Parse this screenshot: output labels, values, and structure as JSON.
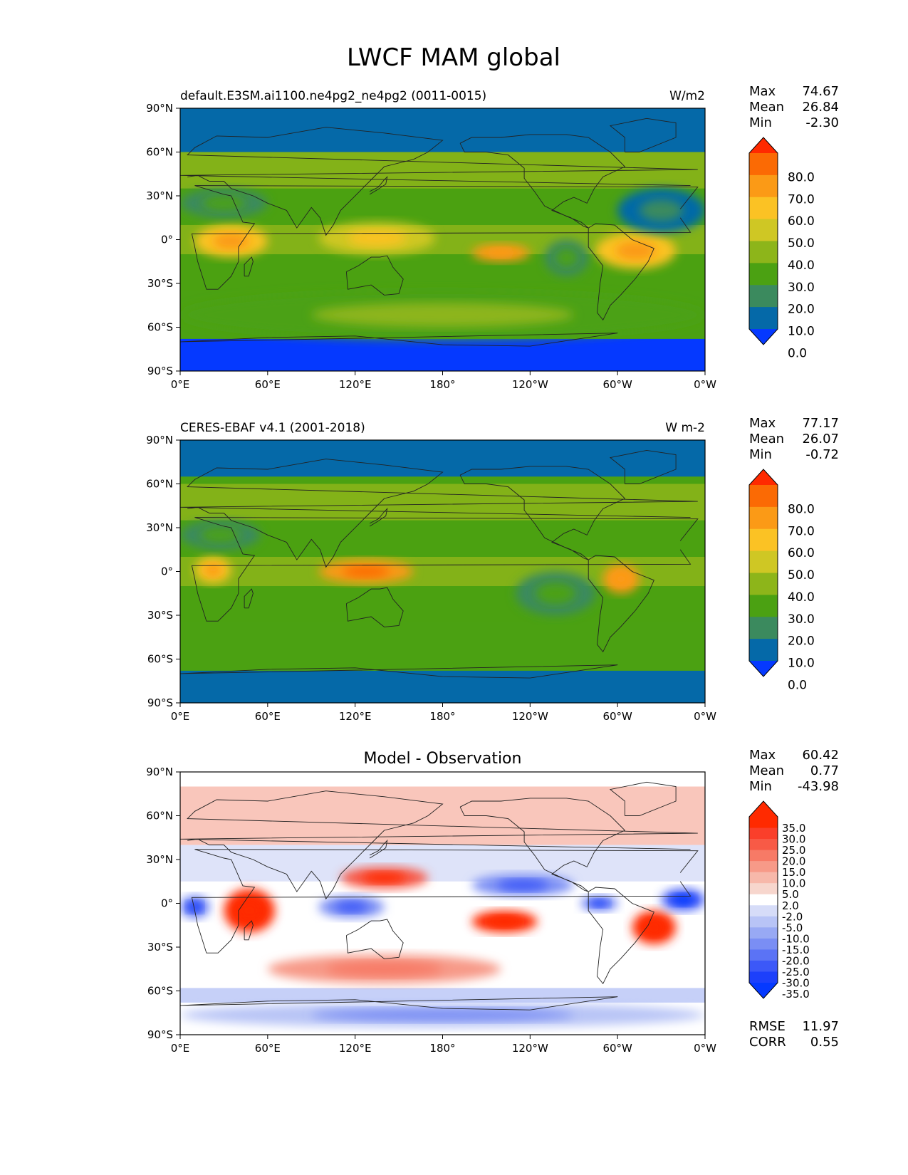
{
  "figure": {
    "title": "LWCF MAM global"
  },
  "chart_data": [
    {
      "type": "heatmap",
      "title_left": "default.E3SM.ai1100.ne4pg2_ne4pg2 (0011-0015)",
      "title_center": "",
      "units": "W/m2",
      "x_ticks": [
        "0°E",
        "60°E",
        "120°E",
        "180°",
        "120°W",
        "60°W",
        "0°W"
      ],
      "y_ticks": [
        "90°N",
        "60°N",
        "30°N",
        "0°",
        "30°S",
        "60°S",
        "90°S"
      ],
      "xlim": [
        0,
        360
      ],
      "ylim": [
        -90,
        90
      ],
      "stats": [
        {
          "label": "Max",
          "value": "74.67"
        },
        {
          "label": "Mean",
          "value": "26.84"
        },
        {
          "label": "Min",
          "value": "-2.30"
        }
      ],
      "colorbar": {
        "labels": [
          "80.0",
          "70.0",
          "60.0",
          "50.0",
          "40.0",
          "30.0",
          "20.0",
          "10.0",
          "0.0"
        ],
        "colors": [
          "#ff2a00",
          "#fb6a04",
          "#fb9a16",
          "#fbc224",
          "#cfc724",
          "#8db51a",
          "#4ba112",
          "#3b8a5e",
          "#0569a8",
          "#0539ff"
        ]
      },
      "regions": [
        {
          "name": "polar-north",
          "lat": [
            60,
            90
          ],
          "lon": [
            0,
            360
          ],
          "value": 5
        },
        {
          "name": "polar-south",
          "lat": [
            -90,
            -68
          ],
          "lon": [
            0,
            360
          ],
          "value": -1
        },
        {
          "name": "subantarctic-band",
          "lat": [
            -68,
            -35
          ],
          "lon": [
            0,
            360
          ],
          "value": 28
        },
        {
          "name": "africa-convection",
          "lat": [
            -12,
            10
          ],
          "lon": [
            10,
            60
          ],
          "value": 58
        },
        {
          "name": "maritime-continent",
          "lat": [
            -10,
            12
          ],
          "lon": [
            95,
            175
          ],
          "value": 48
        },
        {
          "name": "central-pacific-max",
          "lat": [
            -15,
            -3
          ],
          "lon": [
            200,
            240
          ],
          "value": 60
        },
        {
          "name": "amazon-atlantic",
          "lat": [
            -20,
            5
          ],
          "lon": [
            285,
            340
          ],
          "value": 52
        },
        {
          "name": "east-pacific-dry",
          "lat": [
            -25,
            0
          ],
          "lon": [
            250,
            280
          ],
          "value": 12
        },
        {
          "name": "atlantic-subtropics",
          "lat": [
            5,
            35
          ],
          "lon": [
            300,
            360
          ],
          "value": 9
        },
        {
          "name": "sahara-arabia",
          "lat": [
            15,
            35
          ],
          "lon": [
            0,
            60
          ],
          "value": 18
        }
      ]
    },
    {
      "type": "heatmap",
      "title_left": "CERES-EBAF v4.1 (2001-2018)",
      "title_center": "",
      "units": "W m-2",
      "x_ticks": [
        "0°E",
        "60°E",
        "120°E",
        "180°",
        "120°W",
        "60°W",
        "0°W"
      ],
      "y_ticks": [
        "90°N",
        "60°N",
        "30°N",
        "0°",
        "30°S",
        "60°S",
        "90°S"
      ],
      "xlim": [
        0,
        360
      ],
      "ylim": [
        -90,
        90
      ],
      "stats": [
        {
          "label": "Max",
          "value": "77.17"
        },
        {
          "label": "Mean",
          "value": "26.07"
        },
        {
          "label": "Min",
          "value": "-0.72"
        }
      ],
      "colorbar": {
        "labels": [
          "80.0",
          "70.0",
          "60.0",
          "50.0",
          "40.0",
          "30.0",
          "20.0",
          "10.0",
          "0.0"
        ],
        "colors": [
          "#ff2a00",
          "#fb6a04",
          "#fb9a16",
          "#fbc224",
          "#cfc724",
          "#8db51a",
          "#4ba112",
          "#3b8a5e",
          "#0569a8",
          "#0539ff"
        ]
      },
      "regions": [
        {
          "name": "polar-north",
          "lat": [
            65,
            90
          ],
          "lon": [
            0,
            360
          ],
          "value": 8
        },
        {
          "name": "polar-south",
          "lat": [
            -90,
            -68
          ],
          "lon": [
            0,
            360
          ],
          "value": 8
        },
        {
          "name": "central-africa",
          "lat": [
            -8,
            10
          ],
          "lon": [
            10,
            35
          ],
          "value": 58
        },
        {
          "name": "maritime-continent",
          "lat": [
            -8,
            8
          ],
          "lon": [
            95,
            160
          ],
          "value": 62
        },
        {
          "name": "amazon",
          "lat": [
            -15,
            5
          ],
          "lon": [
            290,
            315
          ],
          "value": 60
        },
        {
          "name": "east-pacific-dry",
          "lat": [
            -30,
            0
          ],
          "lon": [
            230,
            285
          ],
          "value": 15
        },
        {
          "name": "sahara",
          "lat": [
            15,
            35
          ],
          "lon": [
            0,
            55
          ],
          "value": 15
        }
      ]
    },
    {
      "type": "heatmap",
      "title_left": "",
      "title_center": "Model - Observation",
      "units": "",
      "x_ticks": [
        "0°E",
        "60°E",
        "120°E",
        "180°",
        "120°W",
        "60°W",
        "0°W"
      ],
      "y_ticks": [
        "90°N",
        "60°N",
        "30°N",
        "0°",
        "30°S",
        "60°S",
        "90°S"
      ],
      "xlim": [
        0,
        360
      ],
      "ylim": [
        -90,
        90
      ],
      "stats": [
        {
          "label": "Max",
          "value": "60.42"
        },
        {
          "label": "Mean",
          "value": "0.77"
        },
        {
          "label": "Min",
          "value": "-43.98"
        }
      ],
      "extra_stats": [
        {
          "label": "RMSE",
          "value": "11.97"
        },
        {
          "label": "CORR",
          "value": "0.55"
        }
      ],
      "colorbar": {
        "labels": [
          "35.0",
          "30.0",
          "25.0",
          "20.0",
          "15.0",
          "10.0",
          "5.0",
          "2.0",
          "-2.0",
          "-5.0",
          "-10.0",
          "-15.0",
          "-20.0",
          "-25.0",
          "-30.0",
          "-35.0"
        ],
        "colors": [
          "#ff2a00",
          "#ff2a00",
          "#fa3f2a",
          "#f85a46",
          "#f77a66",
          "#f79a88",
          "#f7b8aa",
          "#f7d6cd",
          "#ffffff",
          "#d6dcf8",
          "#b8c4f6",
          "#98a9f4",
          "#7a8ef4",
          "#5b73f5",
          "#3c58f8",
          "#1d40fb",
          "#0539ff"
        ]
      },
      "regions": [
        {
          "name": "east-africa-positive",
          "lat": [
            -20,
            10
          ],
          "lon": [
            30,
            65
          ],
          "value": 40
        },
        {
          "name": "central-pacific-positive",
          "lat": [
            -20,
            -5
          ],
          "lon": [
            200,
            245
          ],
          "value": 38
        },
        {
          "name": "south-atlantic-positive",
          "lat": [
            -28,
            -5
          ],
          "lon": [
            310,
            340
          ],
          "value": 35
        },
        {
          "name": "northwest-pacific-positive",
          "lat": [
            10,
            25
          ],
          "lon": [
            110,
            170
          ],
          "value": 22
        },
        {
          "name": "southern-ocean-positive",
          "lat": [
            -55,
            -35
          ],
          "lon": [
            60,
            220
          ],
          "value": 10
        },
        {
          "name": "west-africa-negative",
          "lat": [
            -10,
            5
          ],
          "lon": [
            0,
            20
          ],
          "value": -25
        },
        {
          "name": "maritime-continent-negative",
          "lat": [
            -10,
            5
          ],
          "lon": [
            95,
            140
          ],
          "value": -18
        },
        {
          "name": "north-pacific-negative",
          "lat": [
            5,
            20
          ],
          "lon": [
            200,
            270
          ],
          "value": -20
        },
        {
          "name": "east-pacific-negative",
          "lat": [
            -5,
            5
          ],
          "lon": [
            275,
            300
          ],
          "value": -25
        },
        {
          "name": "atlantic-negative",
          "lat": [
            -5,
            10
          ],
          "lon": [
            330,
            360
          ],
          "value": -30
        },
        {
          "name": "antarctic-negative",
          "lat": [
            -85,
            -68
          ],
          "lon": [
            0,
            360
          ],
          "value": -8
        }
      ]
    }
  ]
}
